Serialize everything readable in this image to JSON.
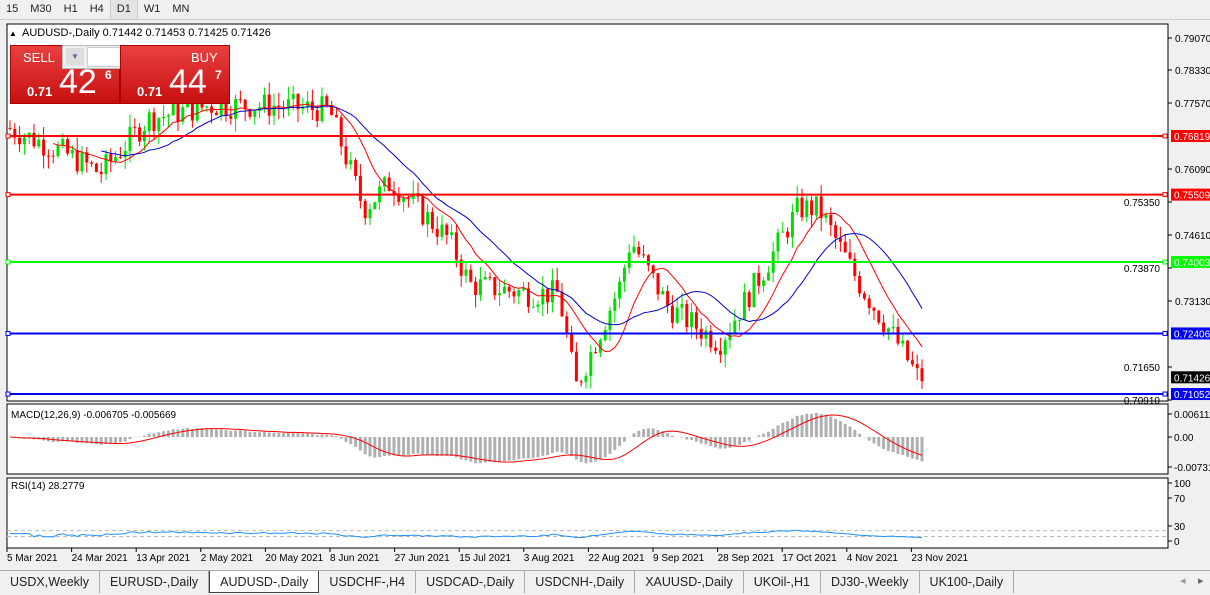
{
  "timeframes": [
    "15",
    "M30",
    "H1",
    "H4",
    "D1",
    "W1",
    "MN"
  ],
  "active_timeframe": "D1",
  "chart_title": "AUDUSD-,Daily  0.71442 0.71453 0.71425 0.71426",
  "trade_panel": {
    "sell_label": "SELL",
    "buy_label": "BUY",
    "lot": "0.01",
    "sell_prefix": "0.71",
    "sell_big": "42",
    "sell_sup": "6",
    "buy_prefix": "0.71",
    "buy_big": "44",
    "buy_sup": "7"
  },
  "price_ticks": [
    "0.79070",
    "0.78330",
    "0.77570",
    "0.76090",
    "0.75350",
    "0.74610",
    "0.73870",
    "0.73130",
    "0.71650",
    "0.70910"
  ],
  "hlines": [
    {
      "price": "0.76819",
      "color": "#ff0000"
    },
    {
      "price": "0.75509",
      "color": "#ff0000"
    },
    {
      "price": "0.74003",
      "color": "#00ff00"
    },
    {
      "price": "0.72406",
      "color": "#0000ff"
    },
    {
      "price": "0.71052",
      "color": "#0000ff"
    }
  ],
  "current_price": "0.71426",
  "macd": {
    "label": "MACD(12,26,9) -0.006705 -0.005669",
    "ticks": [
      "0.006111",
      "0.00",
      "-0.00731"
    ]
  },
  "rsi": {
    "label": "RSI(14) 28.2779",
    "ticks": [
      "100",
      "70",
      "30",
      "0"
    ]
  },
  "date_ticks": [
    "5 Mar 2021",
    "24 Mar 2021",
    "13 Apr 2021",
    "2 May 2021",
    "20 May 2021",
    "8 Jun 2021",
    "27 Jun 2021",
    "15 Jul 2021",
    "3 Aug 2021",
    "22 Aug 2021",
    "9 Sep 2021",
    "28 Sep 2021",
    "17 Oct 2021",
    "4 Nov 2021",
    "23 Nov 2021"
  ],
  "colors": {
    "bull": "#00dd00",
    "bear": "#ff0000",
    "ma_fast": "#ff0000",
    "ma_slow": "#0000cc",
    "rsi": "#1e90ff",
    "macd_hist": "#b0b0b0"
  },
  "tabs": [
    {
      "label": "USDX,Weekly"
    },
    {
      "label": "EURUSD-,Daily"
    },
    {
      "label": "AUDUSD-,Daily",
      "active": true
    },
    {
      "label": "USDCHF-,H4"
    },
    {
      "label": "USDCAD-,Daily"
    },
    {
      "label": "USDCNH-,Daily"
    },
    {
      "label": "XAUUSD-,Daily"
    },
    {
      "label": "UKOil-,H1"
    },
    {
      "label": "DJ30-,Weekly"
    },
    {
      "label": "UK100-,Daily"
    }
  ],
  "chart_data": {
    "type": "candlestick",
    "symbol": "AUDUSD-",
    "timeframe": "Daily",
    "ylim": [
      0.7085,
      0.7915
    ],
    "close_path": [
      [
        "2021-03-05",
        0.77
      ],
      [
        "2021-03-20",
        0.765
      ],
      [
        "2021-04-01",
        0.76
      ],
      [
        "2021-04-15",
        0.772
      ],
      [
        "2021-05-03",
        0.775
      ],
      [
        "2021-05-21",
        0.775
      ],
      [
        "2021-06-07",
        0.774
      ],
      [
        "2021-06-17",
        0.752
      ],
      [
        "2021-06-25",
        0.758
      ],
      [
        "2021-07-12",
        0.745
      ],
      [
        "2021-07-18",
        0.735
      ],
      [
        "2021-08-04",
        0.733
      ],
      [
        "2021-08-13",
        0.733
      ],
      [
        "2021-08-18",
        0.712
      ],
      [
        "2021-08-31",
        0.735
      ],
      [
        "2021-09-03",
        0.745
      ],
      [
        "2021-09-14",
        0.73
      ],
      [
        "2021-09-29",
        0.722
      ],
      [
        "2021-10-11",
        0.737
      ],
      [
        "2021-10-22",
        0.752
      ],
      [
        "2021-10-28",
        0.752
      ],
      [
        "2021-11-09",
        0.735
      ],
      [
        "2021-11-20",
        0.722
      ],
      [
        "2021-11-26",
        0.71426
      ]
    ]
  }
}
